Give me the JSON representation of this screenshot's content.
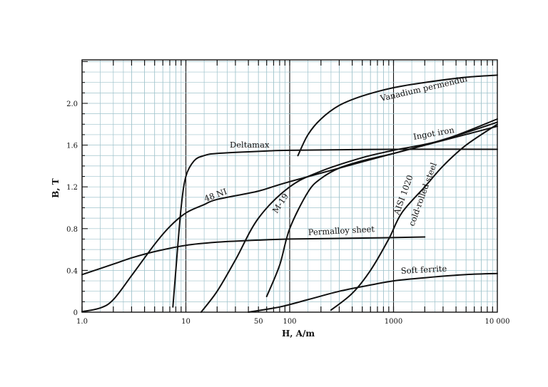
{
  "chart_data": {
    "type": "line",
    "title": "",
    "xlabel": "H, A/m",
    "ylabel": "B, T",
    "x_scale": "log",
    "xlim": [
      1,
      10000
    ],
    "ylim": [
      0,
      2.4
    ],
    "grid": true,
    "x_tick_labels": [
      {
        "value": 1,
        "label": "1.0"
      },
      {
        "value": 10,
        "label": "10"
      },
      {
        "value": 50,
        "label": "50"
      },
      {
        "value": 100,
        "label": "100"
      },
      {
        "value": 1000,
        "label": "1000"
      },
      {
        "value": 10000,
        "label": "10 000"
      }
    ],
    "y_tick_labels": [
      {
        "value": 0,
        "label": "0"
      },
      {
        "value": 0.4,
        "label": "0.4"
      },
      {
        "value": 0.8,
        "label": "0.8"
      },
      {
        "value": 1.2,
        "label": "1.2"
      },
      {
        "value": 1.6,
        "label": "1.6"
      },
      {
        "value": 2.0,
        "label": "2.0"
      }
    ],
    "series": [
      {
        "name": "Vanadium permendur",
        "label_value": {
          "x": 700,
          "y": 2.12
        },
        "x": [
          120,
          150,
          200,
          300,
          500,
          1000,
          2000,
          5000,
          10000
        ],
        "y": [
          1.5,
          1.7,
          1.85,
          1.98,
          2.07,
          2.15,
          2.2,
          2.25,
          2.27
        ]
      },
      {
        "name": "Ingot iron",
        "label_value": {
          "x": 3200,
          "y": 1.7
        },
        "x": [
          60,
          80,
          100,
          150,
          200,
          300,
          500,
          1000,
          2000,
          5000,
          10000
        ],
        "y": [
          0.15,
          0.45,
          0.8,
          1.15,
          1.28,
          1.38,
          1.45,
          1.52,
          1.6,
          1.72,
          1.82
        ]
      },
      {
        "name": "Deltamax",
        "label_value": {
          "x": 40,
          "y": 1.62
        },
        "x": [
          7.5,
          8,
          9,
          10,
          12,
          15,
          20,
          50,
          100,
          1000,
          10000
        ],
        "y": [
          0.05,
          0.4,
          1.0,
          1.3,
          1.45,
          1.5,
          1.52,
          1.54,
          1.55,
          1.56,
          1.56
        ]
      },
      {
        "name": "48 NI",
        "label_value": {
          "x": 25,
          "y": 1.1
        },
        "x": [
          1,
          1.5,
          2,
          3,
          5,
          7,
          10,
          15,
          20,
          50,
          100,
          1000,
          10000
        ],
        "y": [
          0.005,
          0.04,
          0.12,
          0.35,
          0.65,
          0.82,
          0.95,
          1.03,
          1.08,
          1.16,
          1.25,
          1.52,
          1.78
        ]
      },
      {
        "name": "M-19",
        "label_value": {
          "x": 70,
          "y": 1.05
        },
        "x": [
          14,
          20,
          30,
          50,
          100,
          200,
          500,
          1000,
          3000,
          10000
        ],
        "y": [
          0.0,
          0.2,
          0.5,
          0.9,
          1.2,
          1.35,
          1.48,
          1.55,
          1.65,
          1.85
        ]
      },
      {
        "name": "Permalloy sheet",
        "label_value": {
          "x": 600,
          "y": 0.78
        },
        "x": [
          1,
          2,
          3,
          5,
          10,
          20,
          50,
          100,
          500,
          2000
        ],
        "y": [
          0.36,
          0.46,
          0.52,
          0.58,
          0.64,
          0.67,
          0.69,
          0.7,
          0.71,
          0.72
        ]
      },
      {
        "name": "AISI 1020 cold-rolled steel",
        "label_value": {
          "x": 1200,
          "y": 1.2
        },
        "x": [
          250,
          400,
          600,
          900,
          1200,
          2000,
          3000,
          5000,
          10000
        ],
        "y": [
          0.02,
          0.18,
          0.4,
          0.7,
          0.95,
          1.2,
          1.4,
          1.6,
          1.8
        ]
      },
      {
        "name": "Soft ferrite",
        "label_value": {
          "x": 1300,
          "y": 0.37
        },
        "x": [
          40,
          80,
          150,
          300,
          600,
          1000,
          2000,
          5000,
          10000
        ],
        "y": [
          0.0,
          0.05,
          0.12,
          0.2,
          0.26,
          0.3,
          0.33,
          0.36,
          0.37
        ]
      }
    ],
    "labels": {
      "vanadium": "Vanadium permendur",
      "ingot": "Ingot iron",
      "deltamax": "Deltamax",
      "ni48": "48 NI",
      "m19": "M-19",
      "permalloy": "Permalloy sheet",
      "aisi_line1": "AISI 1020",
      "aisi_line2": "cold-rolled steel",
      "ferrite": "Soft ferrite"
    }
  }
}
